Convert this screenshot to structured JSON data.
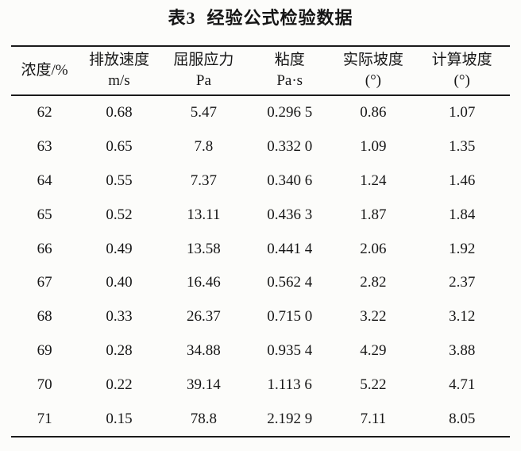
{
  "title": {
    "table_number": "表3",
    "table_caption": "经验公式检验数据"
  },
  "table": {
    "headers": [
      {
        "line1": "浓度/%",
        "line2": ""
      },
      {
        "line1": "排放速度",
        "line2": "m/s"
      },
      {
        "line1": "屈服应力",
        "line2": "Pa"
      },
      {
        "line1": "粘度",
        "line2": "Pa·s"
      },
      {
        "line1": "实际坡度",
        "line2": "(°)"
      },
      {
        "line1": "计算坡度",
        "line2": "(°)"
      }
    ],
    "rows": [
      [
        "62",
        "0.68",
        "5.47",
        "0.296 5",
        "0.86",
        "1.07"
      ],
      [
        "63",
        "0.65",
        "7.8",
        "0.332 0",
        "1.09",
        "1.35"
      ],
      [
        "64",
        "0.55",
        "7.37",
        "0.340 6",
        "1.24",
        "1.46"
      ],
      [
        "65",
        "0.52",
        "13.11",
        "0.436 3",
        "1.87",
        "1.84"
      ],
      [
        "66",
        "0.49",
        "13.58",
        "0.441 4",
        "2.06",
        "1.92"
      ],
      [
        "67",
        "0.40",
        "16.46",
        "0.562 4",
        "2.82",
        "2.37"
      ],
      [
        "68",
        "0.33",
        "26.37",
        "0.715 0",
        "3.22",
        "3.12"
      ],
      [
        "69",
        "0.28",
        "34.88",
        "0.935 4",
        "4.29",
        "3.88"
      ],
      [
        "70",
        "0.22",
        "39.14",
        "1.113 6",
        "5.22",
        "4.71"
      ],
      [
        "71",
        "0.15",
        "78.8",
        "2.192 9",
        "7.11",
        "8.05"
      ]
    ]
  },
  "colors": {
    "background": "#fcfcfa",
    "text": "#161616",
    "rule": "#1b1b1b"
  }
}
